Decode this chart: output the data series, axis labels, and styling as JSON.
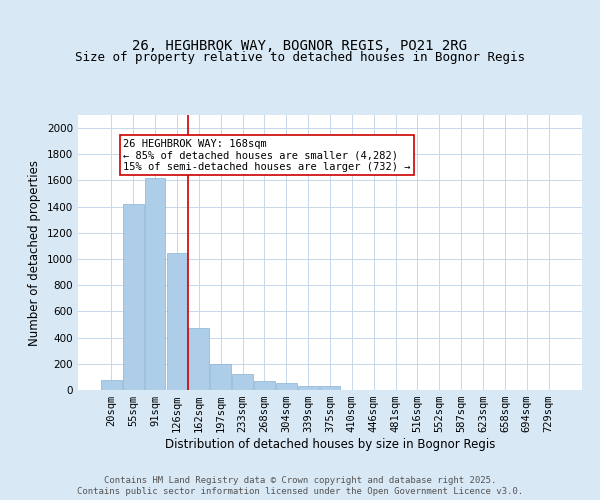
{
  "title_line1": "26, HEGHBROK WAY, BOGNOR REGIS, PO21 2RG",
  "title_line2": "Size of property relative to detached houses in Bognor Regis",
  "xlabel": "Distribution of detached houses by size in Bognor Regis",
  "ylabel": "Number of detached properties",
  "bin_labels": [
    "20sqm",
    "55sqm",
    "91sqm",
    "126sqm",
    "162sqm",
    "197sqm",
    "233sqm",
    "268sqm",
    "304sqm",
    "339sqm",
    "375sqm",
    "410sqm",
    "446sqm",
    "481sqm",
    "516sqm",
    "552sqm",
    "587sqm",
    "623sqm",
    "658sqm",
    "694sqm",
    "729sqm"
  ],
  "bar_values": [
    80,
    1420,
    1620,
    1050,
    470,
    200,
    120,
    65,
    50,
    30,
    30,
    0,
    0,
    0,
    0,
    0,
    0,
    0,
    0,
    0,
    0
  ],
  "bar_color": "#aecde8",
  "bar_edge_color": "#8ab4d4",
  "red_line_x": 4.0,
  "red_line_color": "#cc0000",
  "annotation_text": "26 HEGHBROK WAY: 168sqm\n← 85% of detached houses are smaller (4,282)\n15% of semi-detached houses are larger (732) →",
  "annotation_box_color": "#ffffff",
  "annotation_box_edge": "#cc0000",
  "ylim": [
    0,
    2100
  ],
  "yticks": [
    0,
    200,
    400,
    600,
    800,
    1000,
    1200,
    1400,
    1600,
    1800,
    2000
  ],
  "bg_color": "#d8e8f5",
  "plot_bg_color": "#ffffff",
  "footer_line1": "Contains HM Land Registry data © Crown copyright and database right 2025.",
  "footer_line2": "Contains public sector information licensed under the Open Government Licence v3.0.",
  "footer_color": "#555555",
  "title_fontsize": 10,
  "subtitle_fontsize": 9,
  "axis_label_fontsize": 8.5,
  "tick_fontsize": 7.5,
  "footer_fontsize": 6.5,
  "annotation_fontsize": 7.5
}
